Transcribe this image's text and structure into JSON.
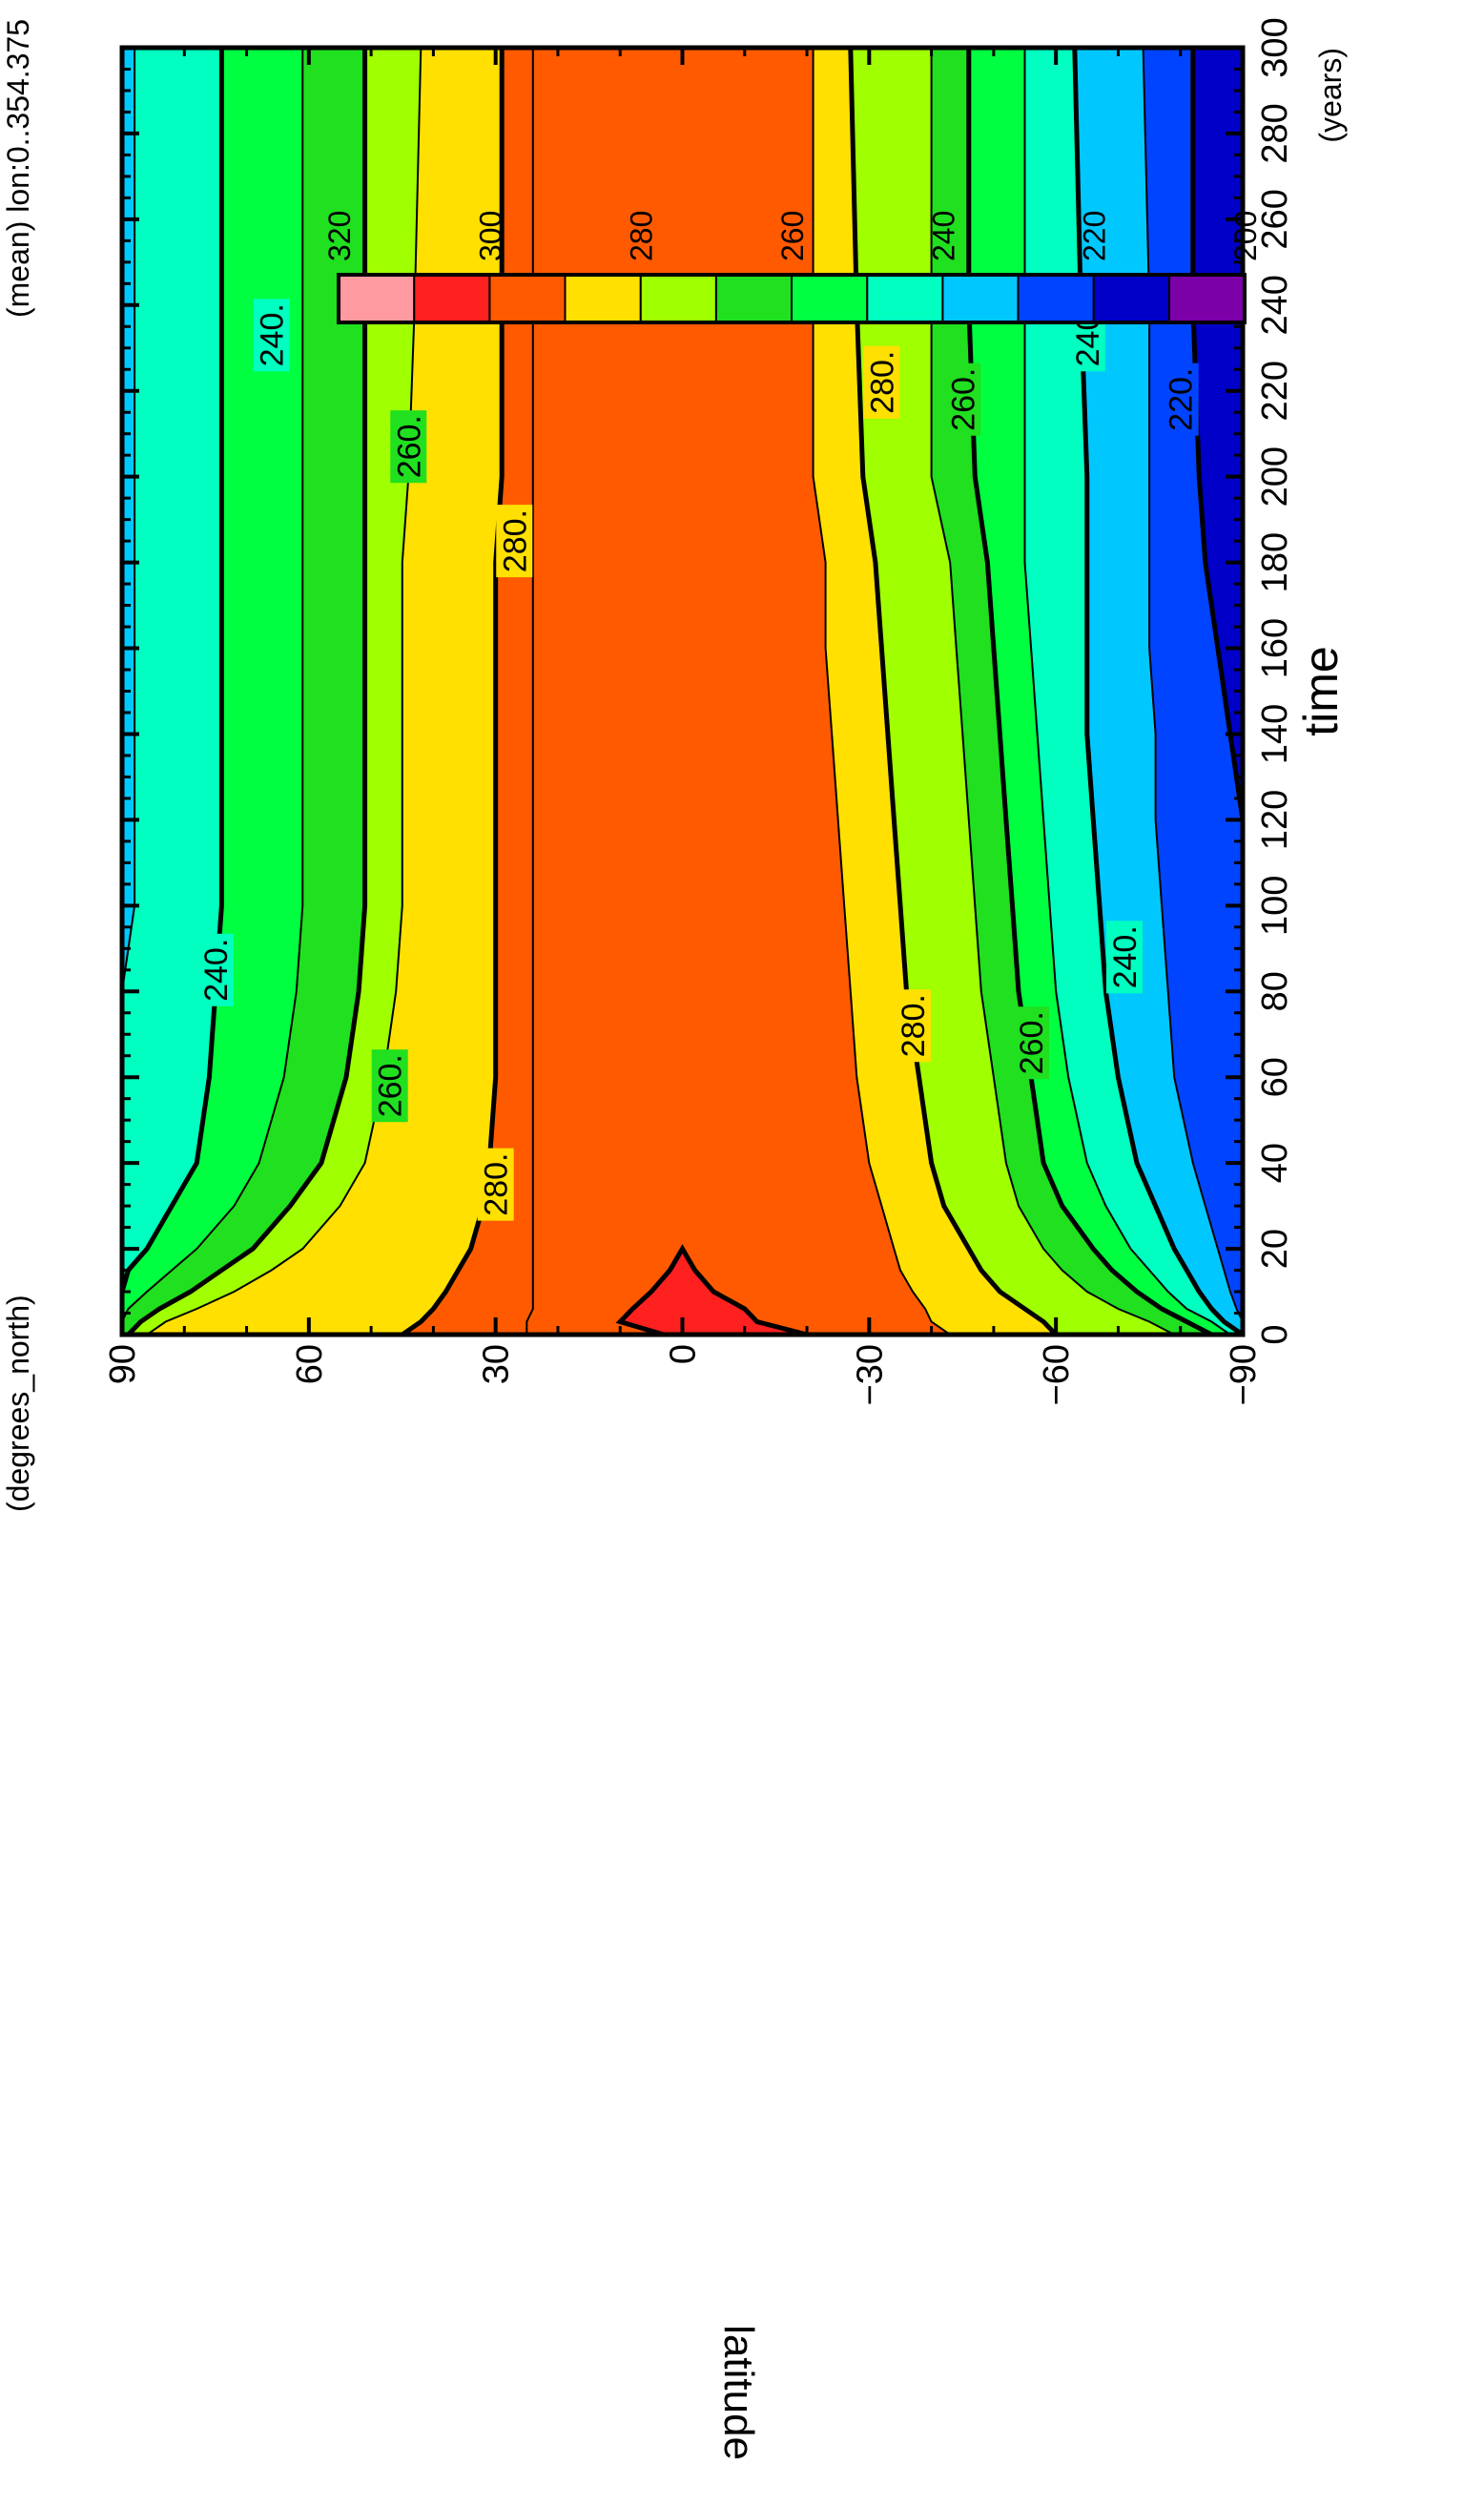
{
  "chart_data": {
    "type": "heatmap",
    "orientation": "rotated-90-ccw",
    "title": "",
    "corner_label": "(mean) lon:0..354.375",
    "ylabel": "latitude",
    "yunits": "(degrees_north)",
    "xlabel": "time",
    "xunits": "(years)",
    "xlim": [
      0,
      300
    ],
    "ylim": [
      -90,
      90
    ],
    "xticks": [
      "0",
      "20",
      "40",
      "60",
      "80",
      "100",
      "120",
      "140",
      "160",
      "180",
      "200",
      "220",
      "240",
      "260",
      "280",
      "300"
    ],
    "yticks": [
      "90",
      "60",
      "30",
      "0",
      "-30",
      "-60",
      "-90"
    ],
    "colorbar": {
      "levels": [
        200,
        210,
        220,
        230,
        240,
        250,
        260,
        270,
        280,
        290,
        300,
        310,
        320
      ],
      "tick_labels": [
        "200",
        "220",
        "240",
        "260",
        "280",
        "300",
        "320"
      ],
      "colors": [
        "#7b00a8",
        "#0000c8",
        "#0044ff",
        "#00c8ff",
        "#00ffc0",
        "#00ff40",
        "#20e020",
        "#a0ff00",
        "#ffe000",
        "#ff5a00",
        "#ff2020",
        "#ff9aa0"
      ]
    },
    "contour_labels": [
      {
        "text": "240.",
        "x": 85,
        "lat": 75
      },
      {
        "text": "260.",
        "x": 58,
        "lat": 47
      },
      {
        "text": "280.",
        "x": 35,
        "lat": 30
      },
      {
        "text": "240.",
        "x": 233,
        "lat": 66
      },
      {
        "text": "260.",
        "x": 207,
        "lat": 44
      },
      {
        "text": "280.",
        "x": 185,
        "lat": 27
      },
      {
        "text": "280.",
        "x": 72,
        "lat": -37
      },
      {
        "text": "260.",
        "x": 68,
        "lat": -56
      },
      {
        "text": "240.",
        "x": 88,
        "lat": -71
      },
      {
        "text": "280.",
        "x": 222,
        "lat": -32
      },
      {
        "text": "260.",
        "x": 218,
        "lat": -45
      },
      {
        "text": "240.",
        "x": 233,
        "lat": -65
      },
      {
        "text": "220.",
        "x": 218,
        "lat": -80
      }
    ],
    "profiles": {
      "x": [
        0,
        3,
        6,
        10,
        15,
        20,
        30,
        40,
        60,
        80,
        100,
        120,
        140,
        160,
        180,
        200,
        240,
        300
      ],
      "north": {
        "230": [
          90,
          90,
          90,
          90,
          90,
          90,
          90,
          90,
          90,
          90,
          88,
          88,
          88,
          88,
          88,
          88,
          88,
          88
        ],
        "240": [
          90,
          90,
          90,
          90,
          89,
          86,
          82,
          78,
          76,
          75,
          74,
          74,
          74,
          74,
          74,
          74,
          74,
          74
        ],
        "250": [
          90,
          90,
          89,
          86,
          82,
          78,
          72,
          68,
          64,
          62,
          61,
          61,
          61,
          61,
          61,
          61,
          61,
          61
        ],
        "260": [
          89,
          87,
          84,
          79,
          74,
          69,
          63,
          58,
          54,
          52,
          51,
          51,
          51,
          51,
          51,
          51,
          51,
          51
        ],
        "270": [
          86,
          83,
          78,
          72,
          66,
          61,
          55,
          51,
          48,
          46,
          45,
          45,
          45,
          45,
          45,
          44,
          43,
          42
        ],
        "280": [
          45,
          42,
          40,
          38,
          36,
          34,
          32,
          31,
          30,
          30,
          30,
          30,
          30,
          30,
          30,
          29,
          29,
          29
        ],
        "290": [
          25,
          25,
          24,
          24,
          24,
          24,
          24,
          24,
          24,
          24,
          24,
          24,
          24,
          24,
          24,
          24,
          24,
          24
        ],
        "300": [
          3,
          10,
          8,
          5,
          2,
          0
        ]
      },
      "south": {
        "300": [
          -20,
          -12,
          -10,
          -5,
          -2,
          0
        ],
        "290": [
          -43,
          -40,
          -39,
          -37,
          -35,
          -34,
          -32,
          -30,
          -28,
          -27,
          -26,
          -25,
          -24,
          -23,
          -23,
          -21,
          -21,
          -21
        ],
        "280": [
          -60,
          -58,
          -55,
          -51,
          -48,
          -46,
          -42,
          -40,
          -38,
          -36,
          -35,
          -34,
          -33,
          -32,
          -31,
          -29,
          -28,
          -27
        ],
        "270": [
          -79,
          -75,
          -70,
          -65,
          -61,
          -58,
          -54,
          -52,
          -50,
          -48,
          -47,
          -46,
          -45,
          -44,
          -43,
          -40,
          -40,
          -40
        ],
        "260": [
          -85,
          -81,
          -77,
          -73,
          -69,
          -66,
          -61,
          -58,
          -56,
          -54,
          -53,
          -52,
          -51,
          -50,
          -49,
          -47,
          -46,
          -46
        ],
        "250": [
          -88,
          -85,
          -81,
          -78,
          -75,
          -72,
          -68,
          -65,
          -62,
          -60,
          -59,
          -58,
          -57,
          -56,
          -55,
          -55,
          -55,
          -55
        ],
        "240": [
          -90,
          -87,
          -85,
          -83,
          -81,
          -79,
          -76,
          -73,
          -70,
          -68,
          -67,
          -66,
          -65,
          -65,
          -65,
          -65,
          -64,
          -63
        ],
        "230": [
          -90,
          -90,
          -89,
          -88,
          -87,
          -86,
          -84,
          -82,
          -79,
          -78,
          -77,
          -76,
          -76,
          -75,
          -75,
          -75,
          -75,
          -74
        ],
        "220": [
          -90,
          -90,
          -90,
          -90,
          -90,
          -90,
          -90,
          -90,
          -90,
          -90,
          -90,
          -90,
          -88,
          -86,
          -84,
          -83,
          -82,
          -82
        ]
      }
    }
  }
}
